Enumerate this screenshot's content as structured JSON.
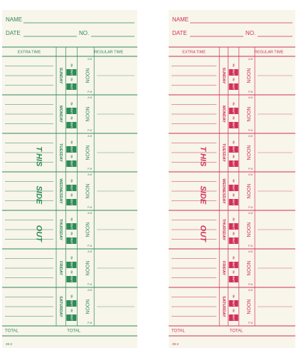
{
  "cards": [
    {
      "color": "#2e8b57",
      "name_label": "NAME",
      "date_label": "DATE",
      "no_label": "NO.",
      "extra_time": "EXTRA TIME",
      "regular_time": "REGULAR TIME",
      "days": [
        "SUNDAY",
        "MONDAY",
        "TUESDAY",
        "WEDNESDAY",
        "THURSDAY",
        "FRIDAY",
        "SATURDAY"
      ],
      "punch": {
        "in": "IN",
        "out": "OUT",
        "noon": "NOON",
        "am": "A M",
        "pm": "P M"
      },
      "side_text": [
        "T HIS",
        "SIDE",
        "OUT"
      ],
      "total": "TOTAL",
      "form_number": "39-2"
    },
    {
      "color": "#d0305a",
      "name_label": "NAME",
      "date_label": "DATE",
      "no_label": "NO.",
      "extra_time": "EXTRA TIME",
      "regular_time": "REGULAR TIME",
      "days": [
        "SUNDAY",
        "MONDAY",
        "TUESDAY",
        "WEDNESDAY",
        "THURSDAY",
        "FRIDAY",
        "SATURDAY"
      ],
      "punch": {
        "in": "IN",
        "out": "OUT",
        "noon": "NOON",
        "am": "A M",
        "pm": "P M"
      },
      "side_text": [
        "T HIS",
        "SIDE",
        "OUT"
      ],
      "total": "TOTAL",
      "form_number": "39-2"
    }
  ]
}
